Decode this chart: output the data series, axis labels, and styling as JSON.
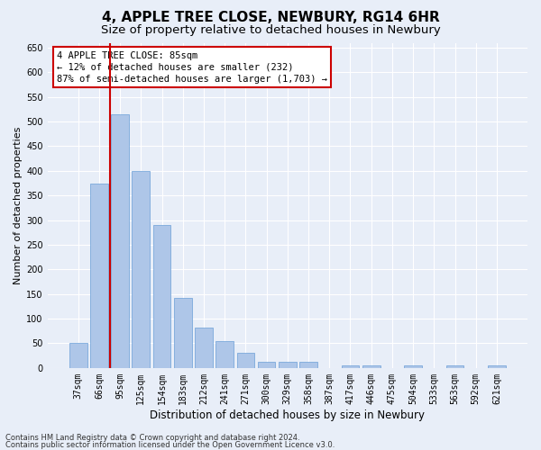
{
  "title": "4, APPLE TREE CLOSE, NEWBURY, RG14 6HR",
  "subtitle": "Size of property relative to detached houses in Newbury",
  "xlabel": "Distribution of detached houses by size in Newbury",
  "ylabel": "Number of detached properties",
  "categories": [
    "37sqm",
    "66sqm",
    "95sqm",
    "125sqm",
    "154sqm",
    "183sqm",
    "212sqm",
    "241sqm",
    "271sqm",
    "300sqm",
    "329sqm",
    "358sqm",
    "387sqm",
    "417sqm",
    "446sqm",
    "475sqm",
    "504sqm",
    "533sqm",
    "563sqm",
    "592sqm",
    "621sqm"
  ],
  "values": [
    50,
    375,
    515,
    400,
    290,
    143,
    82,
    55,
    30,
    12,
    12,
    12,
    0,
    5,
    5,
    0,
    5,
    0,
    5,
    0,
    5
  ],
  "bar_color": "#aec6e8",
  "bar_edge_color": "#6a9fd8",
  "vline_color": "#cc0000",
  "vline_index": 2,
  "ylim_max": 660,
  "yticks": [
    0,
    50,
    100,
    150,
    200,
    250,
    300,
    350,
    400,
    450,
    500,
    550,
    600,
    650
  ],
  "annotation_line1": "4 APPLE TREE CLOSE: 85sqm",
  "annotation_line2": "← 12% of detached houses are smaller (232)",
  "annotation_line3": "87% of semi-detached houses are larger (1,703) →",
  "annot_facecolor": "#ffffff",
  "annot_edgecolor": "#cc0000",
  "footer_line1": "Contains HM Land Registry data © Crown copyright and database right 2024.",
  "footer_line2": "Contains public sector information licensed under the Open Government Licence v3.0.",
  "bg_color": "#e8eef8",
  "grid_color": "#ffffff",
  "title_fontsize": 11,
  "subtitle_fontsize": 9.5,
  "ylabel_fontsize": 8,
  "xlabel_fontsize": 8.5,
  "tick_fontsize": 7,
  "annot_fontsize": 7.5,
  "footer_fontsize": 6
}
